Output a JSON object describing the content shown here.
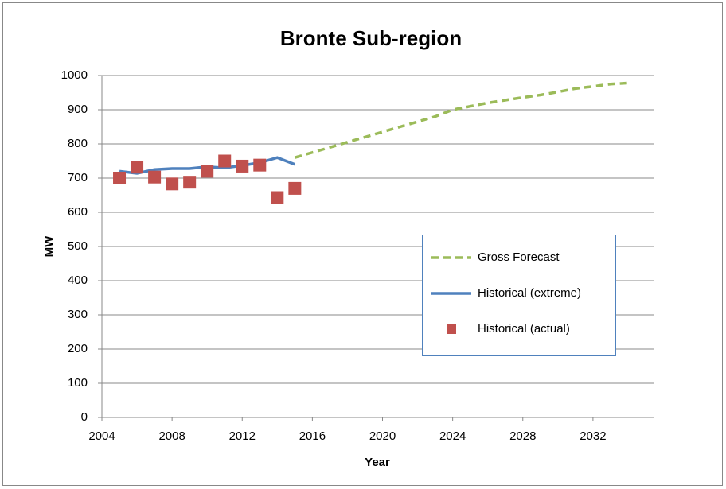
{
  "chart_data": {
    "type": "line",
    "title": "Bronte Sub-region",
    "x_label": "Year",
    "y_label": "MW",
    "xlim": [
      2004,
      2035.5
    ],
    "xticks": [
      2004,
      2008,
      2012,
      2016,
      2020,
      2024,
      2028,
      2032
    ],
    "ylim": [
      0,
      1000
    ],
    "yticks": [
      0,
      100,
      200,
      300,
      400,
      500,
      600,
      700,
      800,
      900,
      1000
    ],
    "grid": true,
    "legend": "right",
    "series": [
      {
        "name": "Gross Forecast",
        "color": "#9bbb59",
        "mark": "dashed-line",
        "x": [
          2015,
          2016,
          2017,
          2018,
          2019,
          2020,
          2021,
          2022,
          2023,
          2024,
          2025,
          2026,
          2027,
          2028,
          2029,
          2030,
          2031,
          2032,
          2033,
          2034
        ],
        "values": [
          760,
          775,
          790,
          805,
          820,
          835,
          850,
          865,
          880,
          900,
          910,
          920,
          928,
          936,
          943,
          952,
          962,
          968,
          975,
          978
        ]
      },
      {
        "name": "Historical (extreme)",
        "color": "#4f81bd",
        "mark": "line",
        "x": [
          2005,
          2006,
          2007,
          2008,
          2009,
          2010,
          2011,
          2012,
          2013,
          2014,
          2015
        ],
        "values": [
          720,
          714,
          725,
          728,
          728,
          733,
          730,
          737,
          745,
          760,
          740
        ]
      },
      {
        "name": "Historical (actual)",
        "color": "#c0504d",
        "mark": "square",
        "x": [
          2005,
          2006,
          2007,
          2008,
          2009,
          2010,
          2011,
          2012,
          2013,
          2014,
          2015
        ],
        "values": [
          700,
          732,
          703,
          683,
          688,
          720,
          750,
          735,
          738,
          643,
          670
        ]
      }
    ]
  }
}
